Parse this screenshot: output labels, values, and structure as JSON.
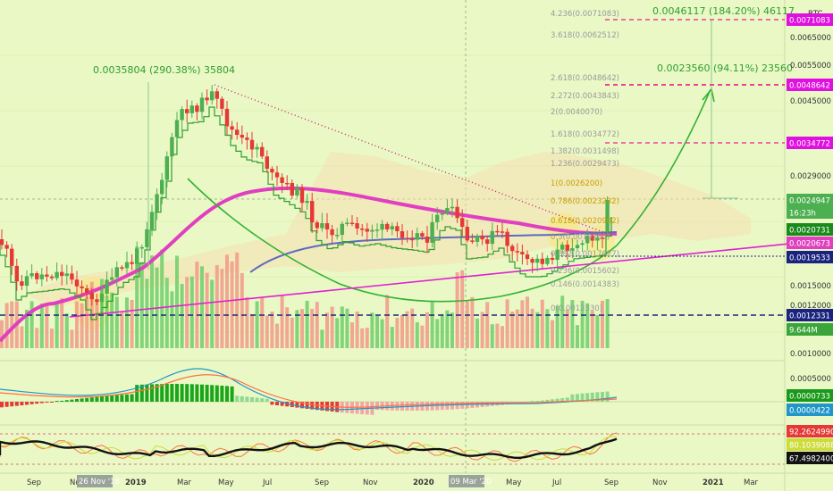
{
  "chart_data": {
    "type": "candlestick",
    "symbol_label": "BTC",
    "x_axis_labels": [
      "Sep",
      "Nov",
      "2019",
      "Mar",
      "May",
      "Jul",
      "Sep",
      "Nov",
      "2020",
      "Mar",
      "May",
      "Jul",
      "Sep",
      "Nov",
      "2021",
      "Mar"
    ],
    "x_axis_badges": [
      "26 Nov '18",
      "09 Mar '20"
    ],
    "price_ticks": [
      "0.0065000",
      "0.0055000",
      "0.0045000",
      "0.0029000",
      "0.0015000",
      "0.0012000"
    ],
    "macd_ticks": [
      "0.0010000",
      "0.0005000"
    ],
    "price_badges": [
      {
        "text": "0.0071083",
        "color": "#e010e0"
      },
      {
        "text": "0.0048642",
        "color": "#e010e0"
      },
      {
        "text": "0.0034772",
        "color": "#e010e0"
      },
      {
        "text": "0.0024947",
        "color": "#4caf50"
      },
      {
        "text": "16:23h",
        "color": "#4caf50"
      },
      {
        "text": "0.0020731",
        "color": "#1a8a1a"
      },
      {
        "text": "0.0020673",
        "color": "#e040c0"
      },
      {
        "text": "0.0019533",
        "color": "#1a237e"
      },
      {
        "text": "0.0012331",
        "color": "#1a237e"
      },
      {
        "text": "9.644M",
        "color": "#3aa63a"
      }
    ],
    "macd_badges": [
      {
        "text": "0.0000733",
        "color": "#1a9a1a"
      },
      {
        "text": "0.0000422",
        "color": "#2196c8"
      }
    ],
    "rsi_badges": [
      {
        "text": "92.2624990",
        "color": "#e53935"
      },
      {
        "text": "80.1039088",
        "color": "#cddc39"
      },
      {
        "text": "67.4982400",
        "color": "#111111"
      }
    ],
    "fibonacci_levels": [
      {
        "label": "4.236(0.0071083)"
      },
      {
        "label": "3.618(0.0062512)"
      },
      {
        "label": "2.618(0.0048642)"
      },
      {
        "label": "2.272(0.0043843)"
      },
      {
        "label": "2(0.0040070)"
      },
      {
        "label": "1.618(0.0034772)"
      },
      {
        "label": "1.382(0.0031498)"
      },
      {
        "label": "1.236(0.0029473)"
      },
      {
        "label": "1(0.0026200)"
      },
      {
        "label": "0.786(0.0023232)"
      },
      {
        "label": "0.618(0.0020902)"
      },
      {
        "label": "0.5(0.0019265)"
      },
      {
        "label": "0.382(0.0017627)"
      },
      {
        "label": "0.236(0.0015602)"
      },
      {
        "label": "0.146(0.0014383)"
      },
      {
        "label": "0(0.0012330)"
      }
    ],
    "annotations": [
      {
        "text": "0.0035804 (290.38%) 35804"
      },
      {
        "text": "0.0046117 (184.20%) 46117"
      },
      {
        "text": "0.0023560 (94.11%) 23560"
      }
    ],
    "colors": {
      "up": "#4caf50",
      "down": "#e53935",
      "ma_magenta": "#e040c0",
      "ma_blue": "#5c6bc0",
      "step": "#2e9e2e",
      "fib": "#e6439a",
      "bg": "#eaf8c6"
    }
  }
}
